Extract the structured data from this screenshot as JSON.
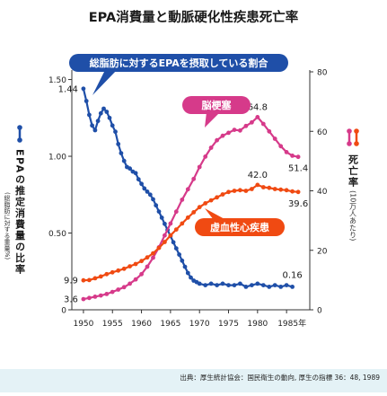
{
  "title": "EPA消費量と動脈硬化性疾患死亡率",
  "footer": "出典：厚生統計協会：国民衛生の動向, 厚生の指標 36：48, 1989",
  "chart_data": {
    "type": "line",
    "x_axis": {
      "ticks": [
        "1950",
        "1955",
        "1960",
        "1965",
        "1970",
        "1975",
        "1980",
        "1985年"
      ],
      "range": [
        1948,
        1989
      ]
    },
    "y_axis_left": {
      "label_main": "EPAの推定消費量の比率",
      "label_sub": "(総脂肪に対する重量%)",
      "ticks": [
        "1.50",
        "1.00",
        "0.50",
        "0"
      ],
      "range": [
        0,
        1.55
      ]
    },
    "y_axis_right": {
      "label_main": "死亡率",
      "label_sub": "(10万人あたり)",
      "ticks": [
        "80",
        "60",
        "40",
        "20",
        "0"
      ],
      "range": [
        0,
        80
      ]
    },
    "series": [
      {
        "name": "総脂肪に対するEPAを摂取している割合",
        "axis": "left",
        "color": "#1f4fa8",
        "points": [
          [
            1950,
            1.44
          ],
          [
            1950.5,
            1.36
          ],
          [
            1951,
            1.27
          ],
          [
            1951.5,
            1.2
          ],
          [
            1952,
            1.17
          ],
          [
            1952.5,
            1.23
          ],
          [
            1953,
            1.28
          ],
          [
            1953.5,
            1.31
          ],
          [
            1954,
            1.29
          ],
          [
            1954.5,
            1.25
          ],
          [
            1955,
            1.2
          ],
          [
            1955.5,
            1.16
          ],
          [
            1956,
            1.08
          ],
          [
            1956.5,
            1.02
          ],
          [
            1957,
            0.97
          ],
          [
            1957.5,
            0.93
          ],
          [
            1958,
            0.92
          ],
          [
            1958.5,
            0.9
          ],
          [
            1959,
            0.89
          ],
          [
            1959.5,
            0.85
          ],
          [
            1960,
            0.82
          ],
          [
            1960.5,
            0.79
          ],
          [
            1961,
            0.77
          ],
          [
            1961.5,
            0.75
          ],
          [
            1962,
            0.72
          ],
          [
            1962.5,
            0.68
          ],
          [
            1963,
            0.64
          ],
          [
            1963.5,
            0.6
          ],
          [
            1964,
            0.56
          ],
          [
            1964.5,
            0.52
          ],
          [
            1965,
            0.48
          ],
          [
            1965.5,
            0.44
          ],
          [
            1966,
            0.4
          ],
          [
            1966.5,
            0.36
          ],
          [
            1967,
            0.32
          ],
          [
            1967.5,
            0.28
          ],
          [
            1968,
            0.24
          ],
          [
            1968.5,
            0.21
          ],
          [
            1969,
            0.19
          ],
          [
            1969.5,
            0.18
          ],
          [
            1970,
            0.17
          ],
          [
            1971,
            0.16
          ],
          [
            1972,
            0.17
          ],
          [
            1973,
            0.16
          ],
          [
            1974,
            0.17
          ],
          [
            1975,
            0.16
          ],
          [
            1976,
            0.16
          ],
          [
            1977,
            0.17
          ],
          [
            1978,
            0.15
          ],
          [
            1979,
            0.16
          ],
          [
            1980,
            0.17
          ],
          [
            1981,
            0.16
          ],
          [
            1982,
            0.15
          ],
          [
            1983,
            0.16
          ],
          [
            1984,
            0.15
          ],
          [
            1985,
            0.16
          ],
          [
            1986,
            0.15
          ]
        ],
        "labels": [
          {
            "x": 1950,
            "y": 1.44,
            "text": "1.44",
            "pos": "left"
          },
          {
            "x": 1986,
            "y": 0.16,
            "text": "0.16",
            "pos": "above"
          }
        ]
      },
      {
        "name": "脳梗塞",
        "axis": "right",
        "color": "#d63a8a",
        "points": [
          [
            1950,
            3.6
          ],
          [
            1951,
            4.0
          ],
          [
            1952,
            4.4
          ],
          [
            1953,
            4.8
          ],
          [
            1954,
            5.3
          ],
          [
            1955,
            6.0
          ],
          [
            1956,
            6.8
          ],
          [
            1957,
            7.6
          ],
          [
            1958,
            8.8
          ],
          [
            1959,
            10.2
          ],
          [
            1960,
            12.0
          ],
          [
            1961,
            14.5
          ],
          [
            1962,
            17.5
          ],
          [
            1963,
            21.0
          ],
          [
            1964,
            25.0
          ],
          [
            1965,
            29.0
          ],
          [
            1966,
            33.0
          ],
          [
            1967,
            37.0
          ],
          [
            1968,
            40.5
          ],
          [
            1969,
            44.0
          ],
          [
            1970,
            48.0
          ],
          [
            1971,
            51.5
          ],
          [
            1972,
            54.5
          ],
          [
            1973,
            57.0
          ],
          [
            1974,
            58.5
          ],
          [
            1975,
            59.5
          ],
          [
            1976,
            60.5
          ],
          [
            1977,
            60.3
          ],
          [
            1978,
            61.8
          ],
          [
            1979,
            63.0
          ],
          [
            1980,
            64.8
          ],
          [
            1981,
            62.5
          ],
          [
            1982,
            60.0
          ],
          [
            1983,
            57.5
          ],
          [
            1984,
            55.0
          ],
          [
            1985,
            53.0
          ],
          [
            1986,
            51.8
          ],
          [
            1987,
            51.4
          ]
        ],
        "labels": [
          {
            "x": 1950,
            "y": 3.6,
            "text": "3.6",
            "pos": "left"
          },
          {
            "x": 1980,
            "y": 64.8,
            "text": "64.8",
            "pos": "above"
          },
          {
            "x": 1987,
            "y": 51.4,
            "text": "51.4",
            "pos": "below"
          }
        ]
      },
      {
        "name": "虚血性心疾患",
        "axis": "right",
        "color": "#f04a12",
        "points": [
          [
            1950,
            9.9
          ],
          [
            1951,
            10.0
          ],
          [
            1952,
            10.6
          ],
          [
            1953,
            11.2
          ],
          [
            1954,
            12.0
          ],
          [
            1955,
            12.6
          ],
          [
            1956,
            13.2
          ],
          [
            1957,
            13.8
          ],
          [
            1958,
            14.6
          ],
          [
            1959,
            15.4
          ],
          [
            1960,
            16.4
          ],
          [
            1961,
            17.6
          ],
          [
            1962,
            19.0
          ],
          [
            1963,
            20.8
          ],
          [
            1964,
            22.8
          ],
          [
            1965,
            25.0
          ],
          [
            1966,
            27.0
          ],
          [
            1967,
            29.0
          ],
          [
            1968,
            31.0
          ],
          [
            1969,
            32.8
          ],
          [
            1970,
            34.5
          ],
          [
            1971,
            35.8
          ],
          [
            1972,
            36.8
          ],
          [
            1973,
            37.8
          ],
          [
            1974,
            38.8
          ],
          [
            1975,
            39.6
          ],
          [
            1976,
            40.0
          ],
          [
            1977,
            40.2
          ],
          [
            1978,
            40.0
          ],
          [
            1979,
            40.6
          ],
          [
            1980,
            42.0
          ],
          [
            1981,
            41.2
          ],
          [
            1982,
            41.0
          ],
          [
            1983,
            40.6
          ],
          [
            1984,
            40.4
          ],
          [
            1985,
            40.2
          ],
          [
            1986,
            39.8
          ],
          [
            1987,
            39.6
          ]
        ],
        "labels": [
          {
            "x": 1950,
            "y": 9.9,
            "text": "9.9",
            "pos": "left"
          },
          {
            "x": 1980,
            "y": 42.0,
            "text": "42.0",
            "pos": "above"
          },
          {
            "x": 1987,
            "y": 39.6,
            "text": "39.6",
            "pos": "below"
          }
        ]
      }
    ],
    "callouts": [
      {
        "series": 0,
        "text": "総脂肪に対するEPAを摂取している割合",
        "color": "#1f4fa8"
      },
      {
        "series": 1,
        "text": "脳梗塞",
        "color": "#d63a8a"
      },
      {
        "series": 2,
        "text": "虚血性心疾患",
        "color": "#f04a12"
      }
    ]
  }
}
